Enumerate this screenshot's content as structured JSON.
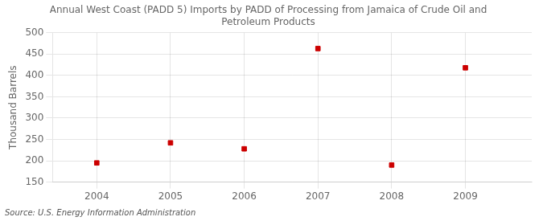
{
  "chart_data": {
    "type": "scatter",
    "title": [
      "Annual West Coast (PADD 5) Imports by PADD of Processing from Jamaica of Crude Oil and",
      "Petroleum Products"
    ],
    "ylabel": "Thousand Barrels",
    "source": "Source: U.S. Energy Information Administration",
    "x": [
      2004,
      2005,
      2006,
      2007,
      2008,
      2009
    ],
    "values": [
      195,
      242,
      228,
      463,
      190,
      418
    ],
    "color": "#cc0000",
    "marker": "square",
    "xlim": [
      2003.4,
      2009.9
    ],
    "ylim": [
      150,
      500
    ],
    "xticks": [
      2004,
      2005,
      2006,
      2007,
      2008,
      2009
    ],
    "yticks": [
      150,
      200,
      250,
      300,
      350,
      400,
      450,
      500
    ],
    "grid": true
  }
}
